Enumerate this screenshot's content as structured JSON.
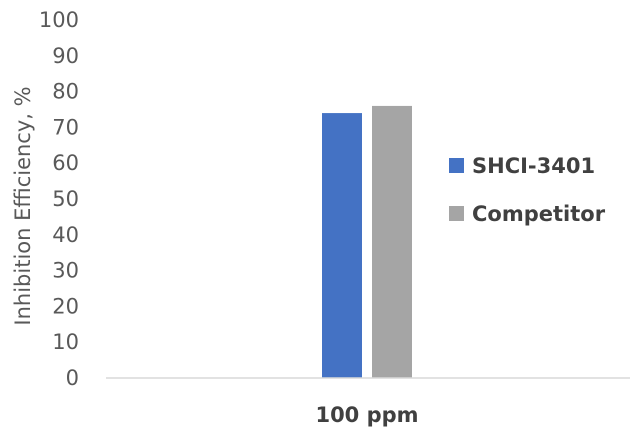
{
  "chart_data": {
    "type": "bar",
    "categories": [
      "100 ppm"
    ],
    "series": [
      {
        "name": "SHCI-3401",
        "values": [
          74
        ],
        "color": "#4472c4"
      },
      {
        "name": "Competitor",
        "values": [
          76
        ],
        "color": "#a5a5a5"
      }
    ],
    "ylabel": "Inhibition Efficiency, %",
    "xlabel": "",
    "ylim": [
      0,
      100
    ],
    "yticks": [
      0,
      10,
      20,
      30,
      40,
      50,
      60,
      70,
      80,
      90,
      100
    ],
    "grid": false,
    "legend_position": "right"
  }
}
